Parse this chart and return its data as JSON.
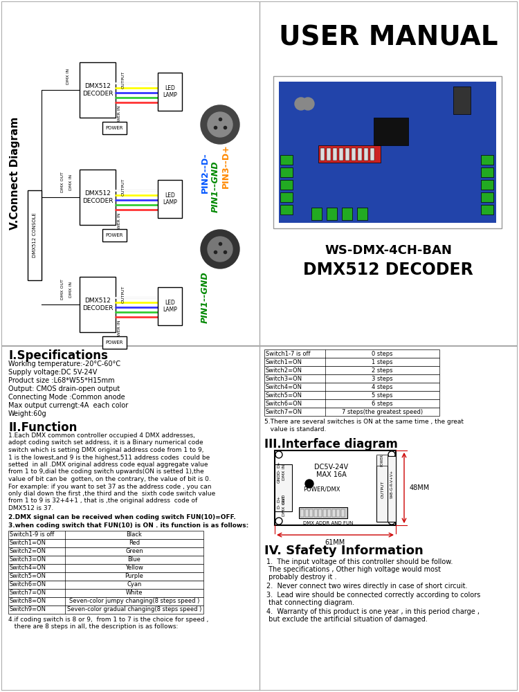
{
  "bg_color": "#ffffff",
  "title_top": "USER MANUAL",
  "product_name_line1": "WS-DMX-4CH-BAN",
  "product_name_line2": "DMX512 DECODER",
  "connect_diagram_title": "V.Connect Diagram",
  "spec_title": "I.Specifications",
  "spec_lines": [
    "Working temperature:-20°C-60°C",
    "Supply voltage:DC 5V-24V",
    "Product size :L68*W55*H15mm",
    "Output: CMOS drain-open output",
    "Connecting Mode :Common anode",
    "Max output currengt:4A  each color",
    "Weight:60g"
  ],
  "func_title": "II.Function",
  "func_para1_lines": [
    "1.Each DMX common controller occupied 4 DMX addresses,",
    "adopt coding switch set address, it is a Binary numerical code",
    "switch which is setting DMX original address code from 1 to 9,",
    "1 is the lowest,and 9 is the highest,511 address codes  could be",
    "setted  in all .DMX original address code equal aggregate value",
    "from 1 to 9,dial the coding switch upwards(ON is setted 1),the",
    "value of bit can be  gotten, on the contrary, the value of bit is 0.",
    "For example: if you want to set 37 as the address code , you can",
    "only dial down the first ,the third and the  sixth code switch value",
    "from 1 to 9 is 32+4+1 , that is ,the original address  code of",
    "DMX512 is 37."
  ],
  "func_para2": "2.DMX signal can be received when coding switch FUN(10)=OFF.",
  "func_para3": "3.when coding switch that FUN(10) is ON . its function is as follows:",
  "table1_headers": [
    "Switch1-9 is off",
    "Black"
  ],
  "table1_rows": [
    [
      "Switch1=ON",
      "Red"
    ],
    [
      "Switch2=ON",
      "Green"
    ],
    [
      "Switch3=ON",
      "Blue"
    ],
    [
      "Switch4=ON",
      "Yellow"
    ],
    [
      "Switch5=ON",
      "Purple"
    ],
    [
      "Switch6=ON",
      "Cyan"
    ],
    [
      "Switch7=ON",
      "White"
    ],
    [
      "Switch8=ON",
      "Seven-color jumpy changing(8 steps speed )"
    ],
    [
      "Switch9=ON",
      "Seven-color gradual changing(8 steps speed )"
    ]
  ],
  "func_para4_lines": [
    "4.if coding switch is 8 or 9,  from 1 to 7 is the choice for speed ,",
    "   there are 8 steps in all, the description is as follows:"
  ],
  "table2_headers": [
    "Switch1-7 is off",
    "0 steps"
  ],
  "table2_rows": [
    [
      "Switch1=ON",
      "1 steps"
    ],
    [
      "Switch2=ON",
      "2 steps"
    ],
    [
      "Switch3=ON",
      "3 steps"
    ],
    [
      "Switch4=ON",
      "4 steps"
    ],
    [
      "Switch5=ON",
      "5 steps"
    ],
    [
      "Switch6=ON",
      "6 steps"
    ],
    [
      "Switch7=ON",
      "7 steps(the greatest speed)"
    ]
  ],
  "func_para5_lines": [
    "5.There are several switches is ON at the same time , the great",
    "   value is standard."
  ],
  "interface_title": "III.Interface diagram",
  "safety_title": "IV. Sfafety Information",
  "safety_items": [
    [
      "1.  The input voltage of this controller should be follow.",
      " The specifications , Other high voltage would most",
      " probably destroy it ."
    ],
    [
      "2.  Never connect two wires directly in case of short circuit."
    ],
    [
      "3.  Lead wire should be connected correctly according to colors",
      " that connecting diagram."
    ],
    [
      "4.  Warranty of this product is one year , in this period charge ,",
      " but exclude the artificial situation of damaged."
    ]
  ]
}
